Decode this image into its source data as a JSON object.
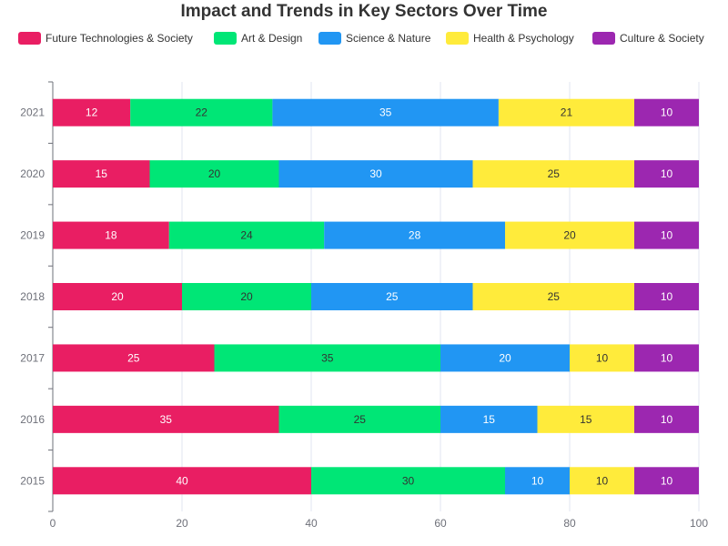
{
  "chart_data": {
    "type": "bar",
    "orientation": "horizontal",
    "stacked": true,
    "title": "Impact and Trends in Key Sectors Over Time",
    "categories": [
      "2015",
      "2016",
      "2017",
      "2018",
      "2019",
      "2020",
      "2021"
    ],
    "series": [
      {
        "name": "Future Technologies & Society",
        "color": "#e91e63",
        "label_color": "#ffffff",
        "values": [
          40,
          35,
          25,
          20,
          18,
          15,
          12
        ]
      },
      {
        "name": "Art & Design",
        "color": "#00e676",
        "label_color": "#333333",
        "values": [
          30,
          25,
          35,
          20,
          24,
          20,
          22
        ]
      },
      {
        "name": "Science & Nature",
        "color": "#2196f3",
        "label_color": "#ffffff",
        "values": [
          10,
          15,
          20,
          25,
          28,
          30,
          35
        ]
      },
      {
        "name": "Health & Psychology",
        "color": "#ffeb3b",
        "label_color": "#333333",
        "values": [
          10,
          15,
          10,
          25,
          20,
          25,
          21
        ]
      },
      {
        "name": "Culture & Society",
        "color": "#9c27b0",
        "label_color": "#ffffff",
        "values": [
          10,
          10,
          10,
          10,
          10,
          10,
          10
        ]
      }
    ],
    "x_axis": {
      "min": 0,
      "max": 100,
      "ticks": [
        "0",
        "20",
        "40",
        "60",
        "80",
        "100"
      ]
    },
    "grid": "vertical",
    "legend_position": "top"
  }
}
